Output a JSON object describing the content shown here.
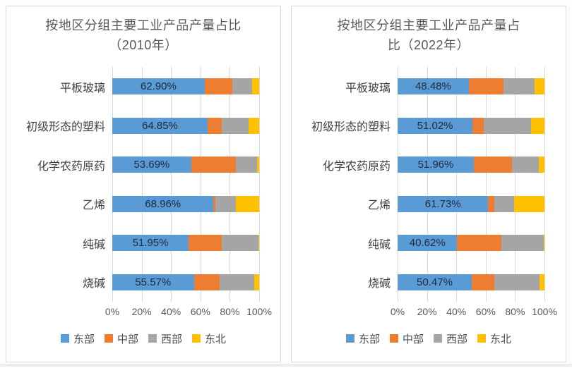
{
  "page": {
    "background": "#ffffff",
    "card_border": "#d9d9d9",
    "gridline_color": "#d9d9d9"
  },
  "chart_data": [
    {
      "type": "bar",
      "stacked": true,
      "orientation": "horizontal",
      "title": "按地区分组主要工业产品产量占比（2010年）",
      "title_lines": [
        "按地区分组主要工业产品产量占比",
        "（2010年）"
      ],
      "categories": [
        "平板玻璃",
        "初级形态的塑料",
        "化学农药原药",
        "乙烯",
        "纯碱",
        "烧碱"
      ],
      "series": [
        {
          "name": "东部",
          "key": "east",
          "color": "#5B9BD5",
          "values": [
            62.9,
            64.85,
            53.69,
            68.96,
            51.95,
            55.57
          ]
        },
        {
          "name": "中部",
          "key": "central",
          "color": "#ED7D31",
          "values": [
            18.6,
            9.8,
            30.4,
            1.4,
            22.4,
            17.3
          ]
        },
        {
          "name": "西部",
          "key": "west",
          "color": "#A5A5A5",
          "values": [
            13.9,
            18.0,
            14.6,
            13.7,
            25.0,
            23.9
          ]
        },
        {
          "name": "东北",
          "key": "northeast",
          "color": "#FFC000",
          "values": [
            4.6,
            7.35,
            1.31,
            15.94,
            0.65,
            3.23
          ]
        }
      ],
      "data_labels": [
        "62.90%",
        "64.85%",
        "53.69%",
        "68.96%",
        "51.95%",
        "55.57%"
      ],
      "x_ticks": [
        "0%",
        "20%",
        "40%",
        "60%",
        "80%",
        "100%"
      ],
      "xlim": [
        0,
        100
      ],
      "grid": true,
      "legend_position": "bottom"
    },
    {
      "type": "bar",
      "stacked": true,
      "orientation": "horizontal",
      "title": "按地区分组主要工业产品产量占比（2022年）",
      "title_lines": [
        "按地区分组主要工业产品产量占",
        "比（2022年）"
      ],
      "categories": [
        "平板玻璃",
        "初级形态的塑料",
        "化学农药原药",
        "乙烯",
        "纯碱",
        "烧碱"
      ],
      "series": [
        {
          "name": "东部",
          "key": "east",
          "color": "#5B9BD5",
          "values": [
            48.48,
            51.02,
            51.96,
            61.73,
            40.62,
            50.47
          ]
        },
        {
          "name": "中部",
          "key": "central",
          "color": "#ED7D31",
          "values": [
            23.4,
            7.5,
            25.8,
            4.2,
            30.1,
            15.5
          ]
        },
        {
          "name": "西部",
          "key": "west",
          "color": "#A5A5A5",
          "values": [
            21.2,
            32.3,
            18.4,
            13.2,
            29.0,
            30.9
          ]
        },
        {
          "name": "东北",
          "key": "northeast",
          "color": "#FFC000",
          "values": [
            6.92,
            9.18,
            3.84,
            20.87,
            0.28,
            3.13
          ]
        }
      ],
      "data_labels": [
        "48.48%",
        "51.02%",
        "51.96%",
        "61.73%",
        "40.62%",
        "50.47%"
      ],
      "x_ticks": [
        "0%",
        "20%",
        "40%",
        "60%",
        "80%",
        "100%"
      ],
      "xlim": [
        0,
        100
      ],
      "grid": true,
      "legend_position": "bottom"
    }
  ]
}
